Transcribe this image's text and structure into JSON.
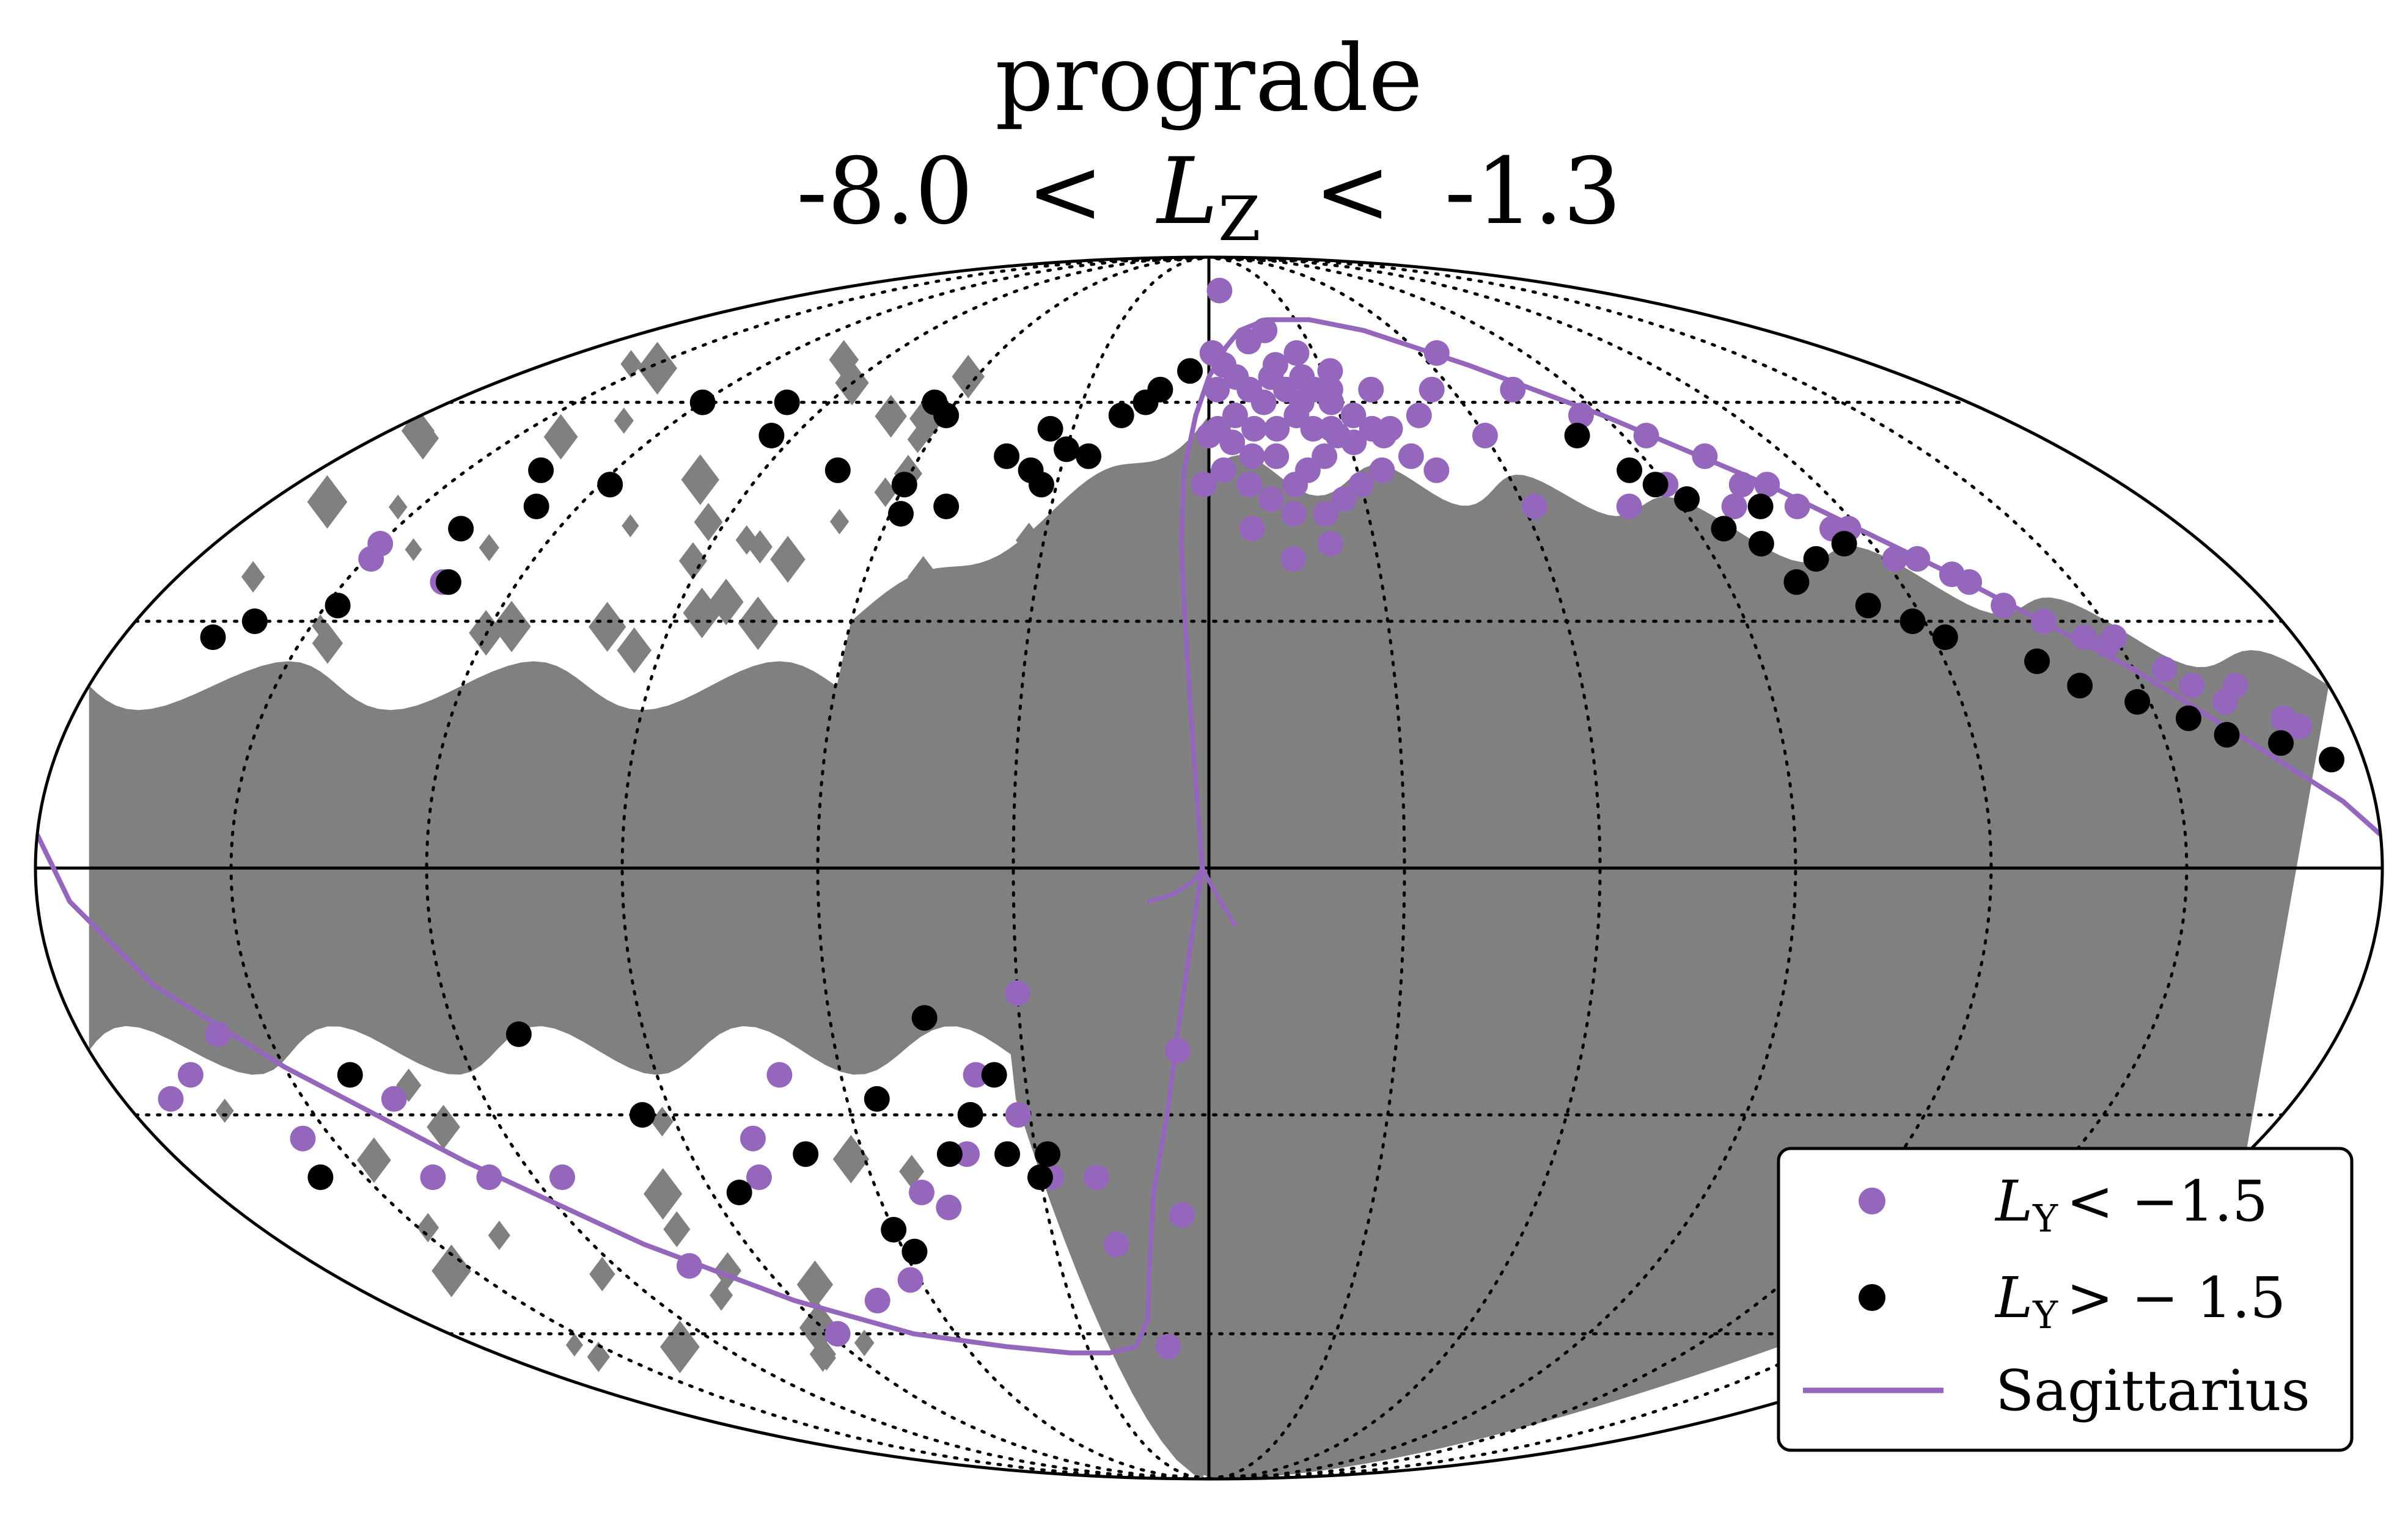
{
  "chart_data": {
    "type": "scatter",
    "projection": "mollweide",
    "title_line1": "prograde",
    "title_line2": {
      "low": "-8.0",
      "lt": "<",
      "var": "L",
      "var_sub": "Z",
      "high": "-1.3"
    },
    "xlim": [
      -180,
      180
    ],
    "ylim": [
      -90,
      90
    ],
    "grid": "on",
    "graticule": {
      "lon_lines": [
        -150,
        -120,
        -90,
        -60,
        -30,
        30,
        60,
        90,
        120,
        150
      ],
      "lat_lines": [
        -60,
        -30,
        30,
        60
      ]
    },
    "legend": {
      "placement": "lower-right",
      "entries": [
        {
          "name": "L_Y < −1.5",
          "var": "L",
          "sub": "Y",
          "rest": "< −1.5",
          "marker": "dot",
          "color": "#9467bd"
        },
        {
          "name": "L_Y > −1.5",
          "var": "L",
          "sub": "Y",
          "rest": "> − 1.5",
          "marker": "dot",
          "color": "#000000"
        },
        {
          "name": "Sagittarius",
          "label": "Sagittarius",
          "marker": "line",
          "color": "#9467bd"
        }
      ]
    },
    "colors": {
      "coverage_gray": "#808080",
      "purple": "#9467bd",
      "black": "#000000",
      "outline": "#000000"
    },
    "series": [
      {
        "name": "L_Y < −1.5",
        "color": "#9467bd",
        "points": [
          [
            5,
            80
          ],
          [
            12,
            70
          ],
          [
            18,
            72
          ],
          [
            25,
            68
          ],
          [
            32,
            65
          ],
          [
            40,
            62
          ],
          [
            48,
            58
          ],
          [
            55,
            62
          ],
          [
            65,
            68
          ],
          [
            75,
            62
          ],
          [
            85,
            58
          ],
          [
            95,
            55
          ],
          [
            103,
            52
          ],
          [
            110,
            48
          ],
          [
            118,
            42
          ],
          [
            126,
            38
          ],
          [
            132,
            35
          ],
          [
            140,
            30
          ],
          [
            148,
            27
          ],
          [
            155,
            24
          ],
          [
            162,
            20
          ],
          [
            170,
            18
          ],
          [
            105,
            48
          ],
          [
            112,
            45
          ],
          [
            122,
            38
          ],
          [
            135,
            32
          ],
          [
            145,
            28
          ],
          [
            158,
            22
          ],
          [
            2,
            62
          ],
          [
            6,
            58
          ],
          [
            10,
            56
          ],
          [
            14,
            52
          ],
          [
            17,
            48
          ],
          [
            20,
            50
          ],
          [
            24,
            52
          ],
          [
            28,
            55
          ],
          [
            3,
            50
          ],
          [
            8,
            48
          ],
          [
            12,
            46
          ],
          [
            16,
            44
          ],
          [
            22,
            44
          ],
          [
            26,
            46
          ],
          [
            30,
            48
          ],
          [
            35,
            50
          ],
          [
            38,
            55
          ],
          [
            42,
            52
          ],
          [
            46,
            50
          ],
          [
            1,
            68
          ],
          [
            4,
            66
          ],
          [
            7,
            64
          ],
          [
            10,
            62
          ],
          [
            13,
            60
          ],
          [
            16,
            64
          ],
          [
            19,
            62
          ],
          [
            22,
            60
          ],
          [
            26,
            62
          ],
          [
            29,
            60
          ],
          [
            33,
            58
          ],
          [
            36,
            56
          ],
          [
            40,
            56
          ],
          [
            20,
            58
          ],
          [
            23,
            56
          ],
          [
            27,
            56
          ],
          [
            31,
            54
          ],
          [
            15,
            56
          ],
          [
            9,
            52
          ],
          [
            5,
            54
          ],
          [
            2,
            56
          ],
          [
            -1,
            48
          ],
          [
            0,
            55
          ],
          [
            18,
            66
          ],
          [
            24,
            64
          ],
          [
            30,
            62
          ],
          [
            -150,
            40
          ],
          [
            -149,
            38
          ],
          [
            -133,
            35
          ],
          [
            8,
            42
          ],
          [
            15,
            38
          ],
          [
            22,
            40
          ],
          [
            62,
            45
          ],
          [
            -158,
            -20
          ],
          [
            -166,
            -25
          ],
          [
            -172,
            -28
          ],
          [
            -155,
            -33
          ],
          [
            -135,
            -28
          ],
          [
            -138,
            -38
          ],
          [
            -128,
            -38
          ],
          [
            -115,
            -38
          ],
          [
            -105,
            -50
          ],
          [
            -88,
            -60
          ],
          [
            -72,
            -55
          ],
          [
            -62,
            -52
          ],
          [
            -58,
            -48
          ],
          [
            -48,
            -42
          ],
          [
            -42,
            -35
          ],
          [
            -40,
            -30
          ],
          [
            -38,
            -25
          ],
          [
            -32,
            -30
          ],
          [
            -28,
            -38
          ],
          [
            -30,
            -15
          ],
          [
            -52,
            -40
          ],
          [
            -78,
            -33
          ],
          [
            -80,
            -38
          ],
          [
            -70,
            -25
          ],
          [
            -20,
            -38
          ],
          [
            -18,
            -47
          ],
          [
            -10,
            -62
          ],
          [
            -5,
            -43
          ],
          [
            -5,
            -22
          ],
          [
            60,
            55
          ],
          [
            90,
            48
          ],
          [
            100,
            45
          ],
          [
            130,
            36
          ],
          [
            150,
            28
          ],
          [
            165,
            22
          ],
          [
            172,
            17
          ],
          [
            80,
            45
          ],
          [
            115,
            42
          ]
        ]
      },
      {
        "name": "L_Y > −1.5",
        "color": "#000000",
        "points": [
          [
            -120,
            60
          ],
          [
            -100,
            60
          ],
          [
            -95,
            55
          ],
          [
            -135,
            50
          ],
          [
            -128,
            45
          ],
          [
            -118,
            48
          ],
          [
            -138,
            42
          ],
          [
            -132,
            35
          ],
          [
            -148,
            32
          ],
          [
            -160,
            30
          ],
          [
            -165,
            28
          ],
          [
            -65,
            60
          ],
          [
            -60,
            58
          ],
          [
            -42,
            52
          ],
          [
            -35,
            56
          ],
          [
            -50,
            45
          ],
          [
            -36,
            50
          ],
          [
            -33,
            48
          ],
          [
            -25,
            52
          ],
          [
            -30,
            53
          ],
          [
            -20,
            58
          ],
          [
            -15,
            60
          ],
          [
            -12,
            62
          ],
          [
            -5,
            65
          ],
          [
            -75,
            50
          ],
          [
            -60,
            48
          ],
          [
            -58,
            44
          ],
          [
            80,
            55
          ],
          [
            85,
            50
          ],
          [
            88,
            48
          ],
          [
            92,
            46
          ],
          [
            95,
            42
          ],
          [
            100,
            40
          ],
          [
            102,
            35
          ],
          [
            108,
            38
          ],
          [
            112,
            32
          ],
          [
            118,
            30
          ],
          [
            122,
            28
          ],
          [
            135,
            25
          ],
          [
            140,
            22
          ],
          [
            148,
            20
          ],
          [
            155,
            18
          ],
          [
            160,
            16
          ],
          [
            168,
            15
          ],
          [
            175,
            13
          ],
          [
            105,
            45
          ],
          [
            115,
            40
          ],
          [
            -140,
            -25
          ],
          [
            -110,
            -20
          ],
          [
            -95,
            -30
          ],
          [
            -70,
            -35
          ],
          [
            -55,
            -28
          ],
          [
            -45,
            -35
          ],
          [
            -40,
            -30
          ],
          [
            -35,
            -35
          ],
          [
            -30,
            -38
          ],
          [
            -35,
            -25
          ],
          [
            -60,
            -45
          ],
          [
            -58,
            -48
          ],
          [
            -85,
            -40
          ],
          [
            -28,
            -35
          ],
          [
            -158,
            -38
          ],
          [
            -45,
            -18
          ]
        ]
      },
      {
        "name": "Sagittarius",
        "color": "#9467bd",
        "line": [
          [
            -1,
            0
          ],
          [
            -2,
            10
          ],
          [
            -3,
            20
          ],
          [
            -4,
            30
          ],
          [
            -5,
            40
          ],
          [
            -5,
            50
          ],
          [
            -3,
            58
          ],
          [
            0,
            64
          ],
          [
            5,
            69
          ],
          [
            10,
            72
          ],
          [
            20,
            74
          ],
          [
            35,
            74
          ],
          [
            50,
            72
          ],
          [
            70,
            66
          ],
          [
            90,
            58
          ],
          [
            110,
            48
          ],
          [
            130,
            36
          ],
          [
            150,
            24
          ],
          [
            165,
            14
          ],
          [
            175,
            8
          ],
          [
            180,
            4
          ],
          [
            -180,
            4
          ],
          [
            -175,
            -4
          ],
          [
            -165,
            -14
          ],
          [
            -150,
            -24
          ],
          [
            -130,
            -36
          ],
          [
            -110,
            -47
          ],
          [
            -90,
            -55
          ],
          [
            -70,
            -60
          ],
          [
            -50,
            -62
          ],
          [
            -35,
            -63
          ],
          [
            -25,
            -63
          ],
          [
            -18,
            -62
          ],
          [
            -14,
            -58
          ],
          [
            -12,
            -50
          ],
          [
            -10,
            -40
          ],
          [
            -7,
            -30
          ],
          [
            -5,
            -20
          ],
          [
            -3,
            -10
          ],
          [
            -1,
            0
          ]
        ]
      }
    ]
  }
}
